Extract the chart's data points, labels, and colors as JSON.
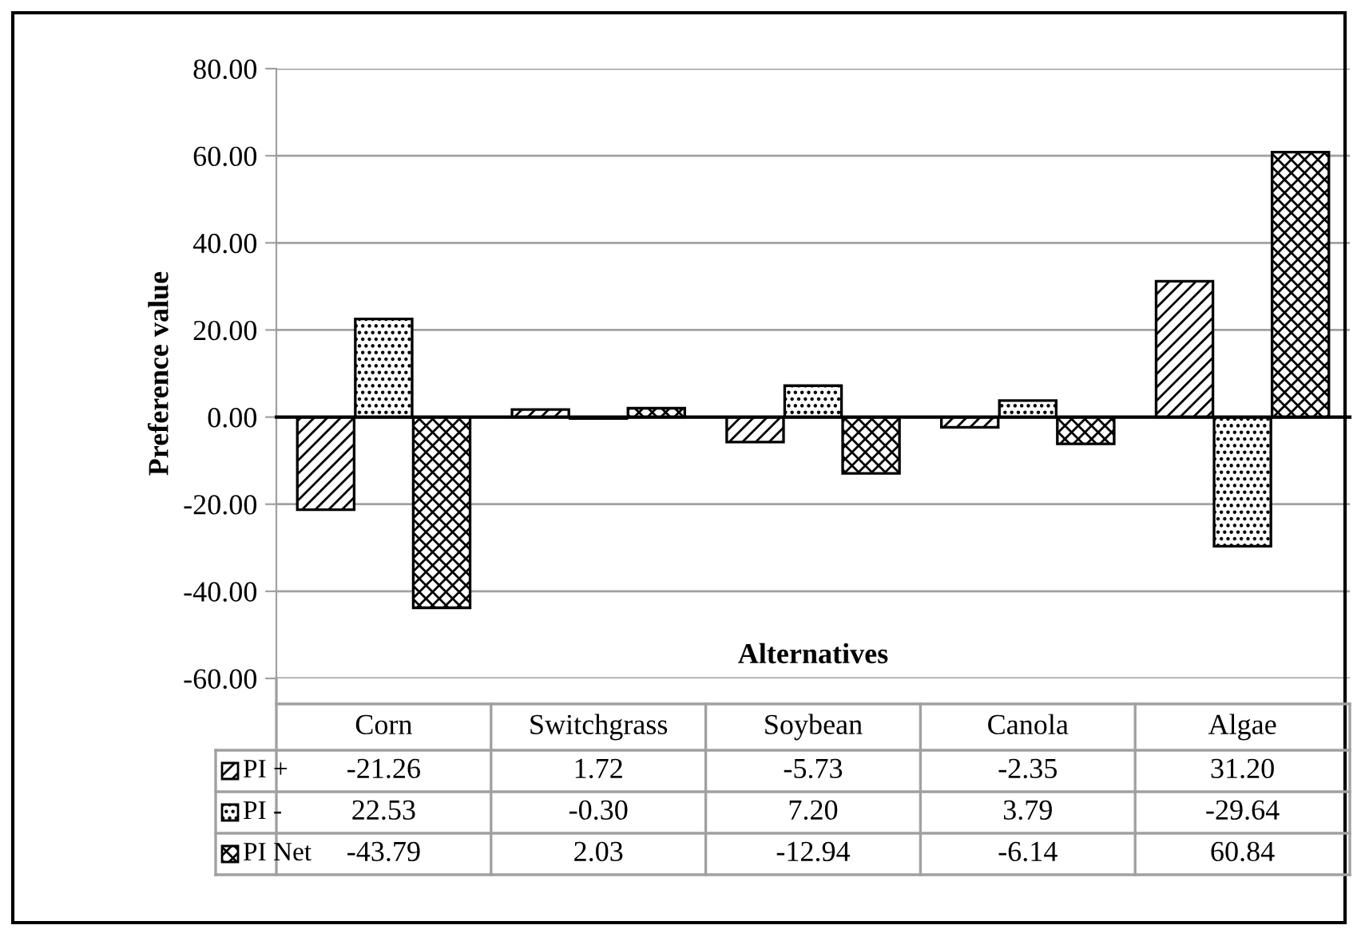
{
  "chart_data": {
    "type": "bar",
    "xlabel": "Alternatives",
    "ylabel": "Preference value",
    "categories": [
      "Corn",
      "Switchgrass",
      "Soybean",
      "Canola",
      "Algae"
    ],
    "series": [
      {
        "name": "PI +",
        "color": "#000000",
        "values": [
          -21.26,
          1.72,
          -5.73,
          -2.35,
          31.2
        ],
        "value_labels": [
          "-21.26",
          "1.72",
          "-5.73",
          "-2.35",
          "31.20"
        ]
      },
      {
        "name": "PI -",
        "color": "#000000",
        "values": [
          22.53,
          -0.3,
          7.2,
          3.79,
          -29.64
        ],
        "value_labels": [
          "22.53",
          "-0.30",
          "7.20",
          "3.79",
          "-29.64"
        ]
      },
      {
        "name": "PI Net",
        "color": "#000000",
        "values": [
          -43.79,
          2.03,
          -12.94,
          -6.14,
          60.84
        ],
        "value_labels": [
          "-43.79",
          "2.03",
          "-12.94",
          "-6.14",
          "60.84"
        ]
      }
    ],
    "ylim": [
      -60,
      80
    ],
    "yticks": [
      {
        "value": -60,
        "label": "-60.00"
      },
      {
        "value": -40,
        "label": "-40.00"
      },
      {
        "value": -20,
        "label": "-20.00"
      },
      {
        "value": 0,
        "label": "0.00"
      },
      {
        "value": 20,
        "label": "20.00"
      },
      {
        "value": 40,
        "label": "40.00"
      },
      {
        "value": 60,
        "label": "60.00"
      },
      {
        "value": 80,
        "label": "80.00"
      }
    ],
    "grid": "y",
    "legend": "bottom"
  }
}
